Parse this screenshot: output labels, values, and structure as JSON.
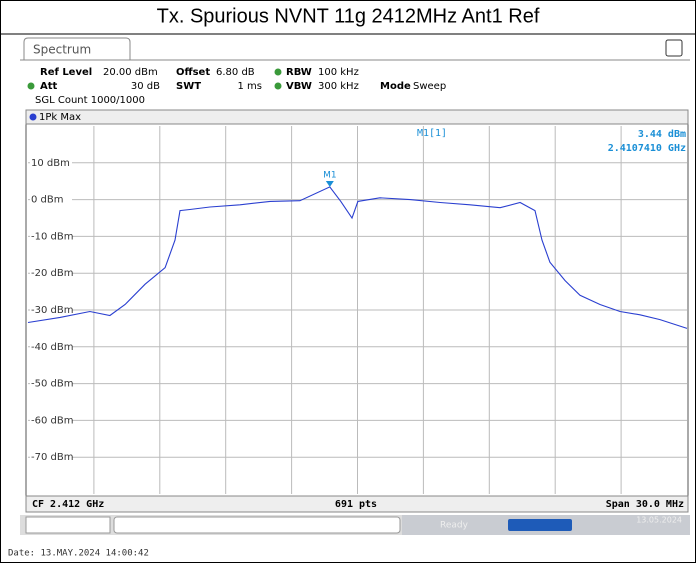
{
  "chart_data": {
    "type": "line",
    "title": "Tx. Spurious NVNT 11g 2412MHz Ant1 Ref",
    "tab": "Spectrum",
    "settings": {
      "ref_level_name": "Ref Level",
      "ref_level": "20.00 dBm",
      "offset_name": "Offset",
      "offset": "6.80 dB",
      "rbw_name": "RBW",
      "rbw": "100 kHz",
      "att_name": "Att",
      "att": "30 dB",
      "swt_name": "SWT",
      "swt": "1 ms",
      "vbw_name": "VBW",
      "vbw": "300 kHz",
      "mode_name": "Mode",
      "mode": "Sweep",
      "count": "SGL Count 1000/1000"
    },
    "trace_label": "1Pk Max",
    "center": "CF 2.412 GHz",
    "points": "691 pts",
    "span": "Span 30.0 MHz",
    "status": "Ready",
    "status_date": "13.05.2024",
    "date": "Date: 13.MAY.2024  14:00:42",
    "xlim": [
      2.397,
      2.427
    ],
    "ylim": [
      -80,
      20
    ],
    "yticks": [
      {
        "value": 10,
        "label": "10 dBm"
      },
      {
        "value": 0,
        "label": "0 dBm"
      },
      {
        "value": -10,
        "label": "-10 dBm"
      },
      {
        "value": -20,
        "label": "-20 dBm"
      },
      {
        "value": -30,
        "label": "-30 dBm"
      },
      {
        "value": -40,
        "label": "-40 dBm"
      },
      {
        "value": -50,
        "label": "-50 dBm"
      },
      {
        "value": -60,
        "label": "-60 dBm"
      },
      {
        "value": -70,
        "label": "-70 dBm"
      }
    ],
    "grid": true,
    "series": [
      {
        "name": "1Pk Max",
        "color": "#2a3fd0",
        "x": [
          2.397,
          2.39846,
          2.39982,
          2.40073,
          2.40142,
          2.40233,
          2.40324,
          2.40369,
          2.40392,
          2.40437,
          2.40528,
          2.40665,
          2.40802,
          2.40938,
          2.410741,
          2.41124,
          2.41175,
          2.41202,
          2.41302,
          2.41439,
          2.41576,
          2.41712,
          2.41849,
          2.4194,
          2.42008,
          2.4204,
          2.42076,
          2.42145,
          2.42213,
          2.42304,
          2.42395,
          2.42486,
          2.42577,
          2.427
        ],
        "values": [
          -33.4,
          -32,
          -30.4,
          -31.5,
          -28.5,
          -23,
          -18.5,
          -11,
          -3,
          -2.7,
          -2,
          -1.4,
          -0.5,
          -0.3,
          3.44,
          -0.5,
          -5,
          -0.5,
          0.5,
          0,
          -0.8,
          -1.4,
          -2.2,
          -0.8,
          -3,
          -11,
          -17,
          -22,
          -26,
          -28.5,
          -30.4,
          -31.3,
          -32.6,
          -35
        ]
      }
    ],
    "markers": [
      {
        "name": "M1",
        "readout": "M1[1]",
        "x": 2.410741,
        "y": 3.44,
        "x_label": "2.4107410 GHz",
        "y_label": "3.44 dBm"
      }
    ]
  }
}
